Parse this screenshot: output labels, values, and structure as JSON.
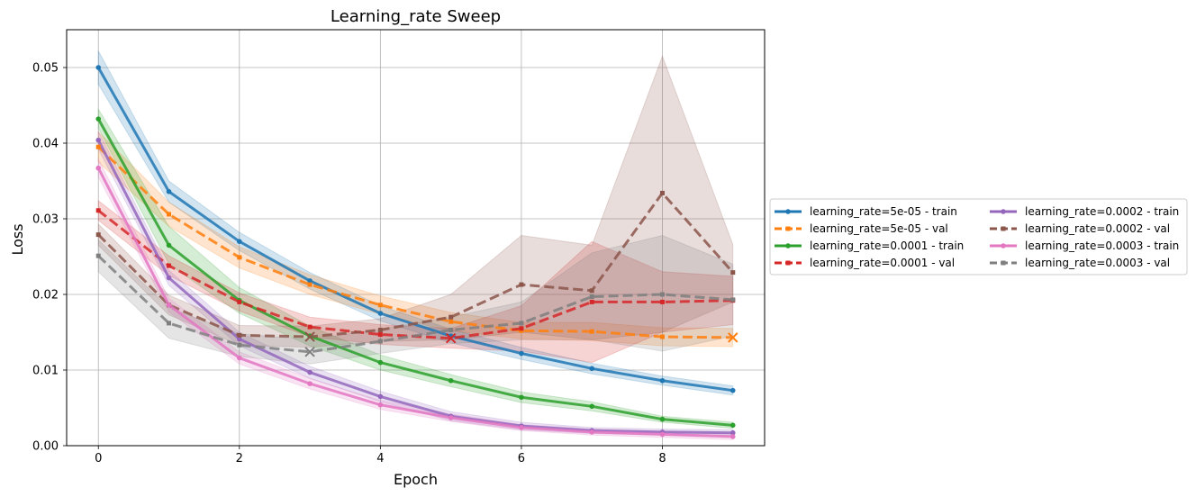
{
  "chart_data": {
    "type": "line",
    "title": "Learning_rate Sweep",
    "xlabel": "Epoch",
    "ylabel": "Loss",
    "xlim": [
      -0.45,
      9.45
    ],
    "ylim": [
      0,
      0.055
    ],
    "xticks": [
      0,
      2,
      4,
      6,
      8
    ],
    "xtick_labels": [
      "0",
      "2",
      "4",
      "6",
      "8"
    ],
    "yticks": [
      0,
      0.01,
      0.02,
      0.03,
      0.04,
      0.05
    ],
    "ytick_labels": [
      "0.00",
      "0.01",
      "0.02",
      "0.03",
      "0.04",
      "0.05"
    ],
    "grid": true,
    "legend_position": "outside right",
    "x": [
      0,
      1,
      2,
      3,
      4,
      5,
      6,
      7,
      8,
      9
    ],
    "series": [
      {
        "name": "learning_rate=5e-05 - train",
        "color": "#1f77b4",
        "dashed": false,
        "values": [
          0.05,
          0.0336,
          0.027,
          0.0218,
          0.0175,
          0.0145,
          0.0122,
          0.0102,
          0.0086,
          0.0073
        ],
        "lower": [
          0.0478,
          0.0322,
          0.0258,
          0.0207,
          0.0165,
          0.0136,
          0.0114,
          0.0095,
          0.008,
          0.0067
        ],
        "upper": [
          0.0522,
          0.035,
          0.0282,
          0.0229,
          0.0185,
          0.0154,
          0.013,
          0.0109,
          0.0092,
          0.0079
        ],
        "best_epoch": null
      },
      {
        "name": "learning_rate=5e-05 - val",
        "color": "#ff7f0e",
        "dashed": true,
        "values": [
          0.0395,
          0.0306,
          0.0249,
          0.0213,
          0.0186,
          0.0164,
          0.0152,
          0.0151,
          0.0144,
          0.0143
        ],
        "lower": [
          0.0375,
          0.029,
          0.0235,
          0.02,
          0.0174,
          0.0152,
          0.0141,
          0.0139,
          0.0132,
          0.0131
        ],
        "upper": [
          0.0415,
          0.0322,
          0.0263,
          0.0226,
          0.0198,
          0.0176,
          0.0163,
          0.0163,
          0.0156,
          0.0155
        ],
        "best_epoch": 9
      },
      {
        "name": "learning_rate=0.0001 - train",
        "color": "#2ca02c",
        "dashed": false,
        "values": [
          0.0432,
          0.0265,
          0.0192,
          0.0145,
          0.011,
          0.0086,
          0.0064,
          0.0052,
          0.0035,
          0.0027
        ],
        "lower": [
          0.042,
          0.024,
          0.0175,
          0.0132,
          0.01,
          0.0078,
          0.0057,
          0.0046,
          0.0031,
          0.0023
        ],
        "upper": [
          0.0445,
          0.029,
          0.0209,
          0.0158,
          0.012,
          0.0094,
          0.0071,
          0.0058,
          0.0039,
          0.0031
        ],
        "best_epoch": null
      },
      {
        "name": "learning_rate=0.0001 - val",
        "color": "#d62728",
        "dashed": true,
        "values": [
          0.0311,
          0.0238,
          0.019,
          0.0157,
          0.0147,
          0.0142,
          0.0155,
          0.019,
          0.019,
          0.0192
        ],
        "lower": [
          0.0298,
          0.0225,
          0.0178,
          0.0144,
          0.0134,
          0.0129,
          0.0125,
          0.011,
          0.015,
          0.016
        ],
        "upper": [
          0.0324,
          0.0251,
          0.0202,
          0.017,
          0.016,
          0.0155,
          0.0185,
          0.027,
          0.023,
          0.0224
        ],
        "best_epoch": 5
      },
      {
        "name": "learning_rate=0.0002 - train",
        "color": "#9467bd",
        "dashed": false,
        "values": [
          0.0404,
          0.0222,
          0.0141,
          0.0097,
          0.0065,
          0.0039,
          0.0026,
          0.002,
          0.0018,
          0.0017
        ],
        "lower": [
          0.0392,
          0.0212,
          0.0132,
          0.0089,
          0.0058,
          0.0033,
          0.0021,
          0.0016,
          0.0014,
          0.0013
        ],
        "upper": [
          0.0416,
          0.0232,
          0.015,
          0.0105,
          0.0072,
          0.0045,
          0.0031,
          0.0024,
          0.0022,
          0.0021
        ],
        "best_epoch": null
      },
      {
        "name": "learning_rate=0.0002 - val",
        "color": "#8c564b",
        "dashed": true,
        "values": [
          0.0279,
          0.0186,
          0.0146,
          0.0144,
          0.0153,
          0.017,
          0.0213,
          0.0205,
          0.0334,
          0.0229
        ],
        "lower": [
          0.0265,
          0.0173,
          0.0133,
          0.013,
          0.0138,
          0.014,
          0.015,
          0.014,
          0.015,
          0.019
        ],
        "upper": [
          0.0293,
          0.0199,
          0.0159,
          0.0158,
          0.0168,
          0.02,
          0.0278,
          0.0265,
          0.0515,
          0.0266
        ],
        "best_epoch": 3
      },
      {
        "name": "learning_rate=0.0003 - train",
        "color": "#e377c2",
        "dashed": false,
        "values": [
          0.0367,
          0.0186,
          0.0116,
          0.0082,
          0.0054,
          0.0037,
          0.0024,
          0.0018,
          0.0015,
          0.0012
        ],
        "lower": [
          0.0355,
          0.0177,
          0.0108,
          0.0075,
          0.0048,
          0.0032,
          0.002,
          0.0014,
          0.0011,
          0.0008
        ],
        "upper": [
          0.0379,
          0.0195,
          0.0124,
          0.0089,
          0.006,
          0.0042,
          0.0028,
          0.0022,
          0.0019,
          0.0016
        ],
        "best_epoch": null
      },
      {
        "name": "learning_rate=0.0003 - val",
        "color": "#7f7f7f",
        "dashed": true,
        "values": [
          0.0251,
          0.0162,
          0.0133,
          0.0124,
          0.0138,
          0.0153,
          0.0162,
          0.0197,
          0.02,
          0.0193
        ],
        "lower": [
          0.023,
          0.0142,
          0.0118,
          0.0108,
          0.0122,
          0.0135,
          0.014,
          0.014,
          0.0125,
          0.0145
        ],
        "upper": [
          0.0272,
          0.0182,
          0.0148,
          0.014,
          0.0154,
          0.017,
          0.019,
          0.0255,
          0.0278,
          0.024
        ],
        "best_epoch": 3
      }
    ]
  }
}
